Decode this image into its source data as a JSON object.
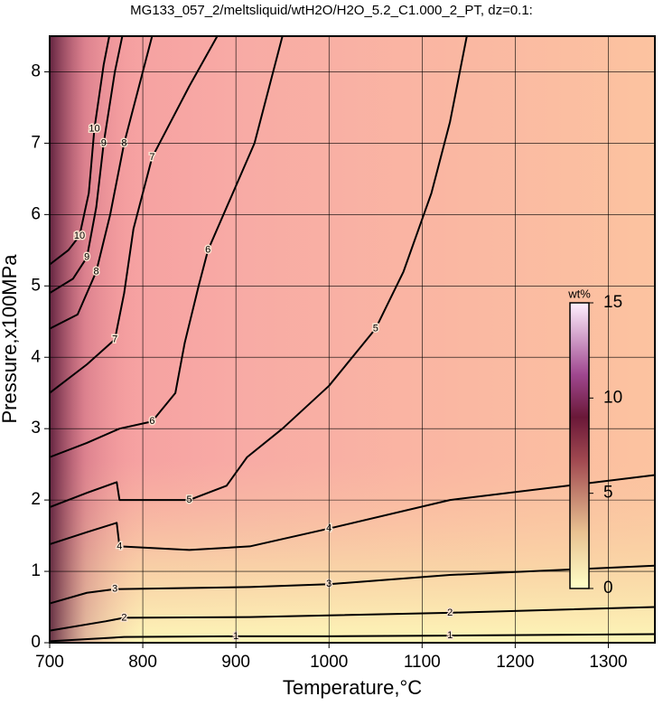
{
  "chart_data": {
    "type": "contour",
    "title": "MG133_057_2/meltsliquid/wtH2O/H2O_5.2_C1.000_2_PT, dz=0.1:",
    "x_label": "Temperature,°C",
    "y_label": "Pressure,x100MPa",
    "xlim": [
      700,
      1350
    ],
    "ylim": [
      0,
      8.5
    ],
    "xticks": [
      700,
      800,
      900,
      1000,
      1100,
      1200,
      1300
    ],
    "yticks": [
      0,
      1,
      2,
      3,
      4,
      5,
      6,
      7,
      8
    ],
    "grid": true,
    "line_color": "#000000",
    "contours": [
      {
        "level": 1,
        "x": [
          700,
          780,
          900,
          1000,
          1130,
          1350
        ],
        "y": [
          0.02,
          0.08,
          0.09,
          0.09,
          0.1,
          0.12
        ]
      },
      {
        "level": 2,
        "x": [
          700,
          760,
          780,
          915,
          1130,
          1350
        ],
        "y": [
          0.17,
          0.3,
          0.35,
          0.36,
          0.42,
          0.5
        ]
      },
      {
        "level": 3,
        "x": [
          700,
          740,
          770,
          915,
          1000,
          1130,
          1350
        ],
        "y": [
          0.55,
          0.7,
          0.75,
          0.78,
          0.82,
          0.95,
          1.08
        ]
      },
      {
        "level": 4,
        "x": [
          700,
          740,
          772,
          775,
          850,
          915,
          1000,
          1130,
          1350
        ],
        "y": [
          1.38,
          1.55,
          1.68,
          1.35,
          1.3,
          1.35,
          1.6,
          2.0,
          2.35
        ]
      },
      {
        "level": 5,
        "x": [
          700,
          740,
          772,
          775,
          850,
          890,
          912,
          950,
          1000,
          1050,
          1080,
          1110,
          1130,
          1148
        ],
        "y": [
          1.9,
          2.1,
          2.25,
          2.0,
          2.0,
          2.2,
          2.6,
          3.0,
          3.6,
          4.4,
          5.2,
          6.3,
          7.3,
          8.5
        ]
      },
      {
        "level": 6,
        "x": [
          700,
          740,
          775,
          810,
          835,
          845,
          860,
          870,
          890,
          920,
          950
        ],
        "y": [
          2.6,
          2.8,
          3.0,
          3.1,
          3.5,
          4.2,
          5.0,
          5.5,
          6.1,
          7.0,
          8.5
        ]
      },
      {
        "level": 7,
        "x": [
          700,
          740,
          770,
          780,
          790,
          810,
          850,
          880
        ],
        "y": [
          3.5,
          3.9,
          4.25,
          4.9,
          5.8,
          6.8,
          7.8,
          8.5
        ]
      },
      {
        "level": 8,
        "x": [
          700,
          730,
          750,
          765,
          780,
          800,
          810
        ],
        "y": [
          4.4,
          4.6,
          5.2,
          6.0,
          7.0,
          8.0,
          8.5
        ]
      },
      {
        "level": 9,
        "x": [
          700,
          725,
          740,
          750,
          758,
          770,
          778
        ],
        "y": [
          4.9,
          5.1,
          5.4,
          6.1,
          7.0,
          8.0,
          8.5
        ]
      },
      {
        "level": 10,
        "x": [
          700,
          720,
          732,
          742,
          748,
          758,
          764
        ],
        "y": [
          5.3,
          5.5,
          5.7,
          6.3,
          7.2,
          8.1,
          8.5
        ]
      }
    ],
    "colorbar": {
      "label": "wt%",
      "clim": [
        0,
        15
      ],
      "ticks": [
        0,
        5,
        10,
        15
      ]
    }
  }
}
